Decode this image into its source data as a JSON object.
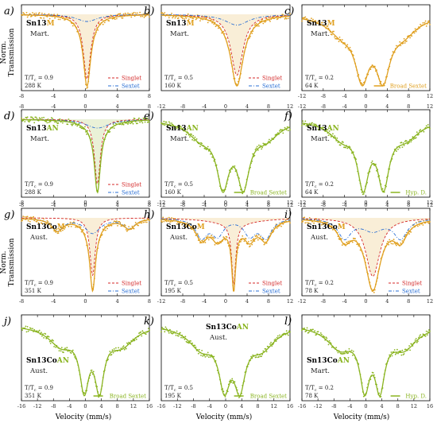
{
  "colors": {
    "M": "#e0a020",
    "AN": "#8ab420",
    "singlet": "#d42a2a",
    "sextet": "#2a6fd4",
    "sum": "#111111"
  },
  "axis_labels": {
    "y_line1": "Norm.",
    "y_line2": "Transmission",
    "x": "Velocity (mm/s)"
  },
  "chart_data": [
    {
      "panel": "a)",
      "type": "scatter",
      "sample_prefix": "Sn13",
      "sample_suffix": "M",
      "phase": "Mart.",
      "ratio": "T/T",
      "ratio_sub": "c",
      "ratio_val": "= 0.9",
      "temperature": "288 K",
      "xlim": [
        -8,
        8
      ],
      "xticks": [
        "-8",
        "-4",
        "0",
        "4",
        "8"
      ],
      "top_ticks": true,
      "bottom_ticks": true,
      "legend": [
        "Singlet",
        "Sextet"
      ],
      "color": "M",
      "model": {
        "singlet": [
          {
            "c": 0.2,
            "w": 0.55,
            "d": 0.9
          }
        ],
        "sextet": [
          {
            "c": 0.2,
            "w": 1.6,
            "d": 0.1
          }
        ]
      }
    },
    {
      "panel": "b)",
      "type": "scatter",
      "sample_prefix": "Sn13",
      "sample_suffix": "M",
      "phase": "Mart.",
      "ratio": "T/T",
      "ratio_sub": "c",
      "ratio_val": "= 0.5",
      "temperature": "160 K",
      "xlim": [
        -8,
        8
      ],
      "xticks": [],
      "top_ticks": true,
      "bottom_ticks": false,
      "legend": [
        "Singlet",
        "Sextet"
      ],
      "color": "M",
      "model": {
        "singlet": [
          {
            "c": 1.4,
            "w": 0.9,
            "d": 0.85
          }
        ],
        "sextet": [
          {
            "c": 1.4,
            "w": 1.8,
            "d": 0.15
          }
        ]
      }
    },
    {
      "panel": "c)",
      "type": "scatter",
      "sample_prefix": "Sn13",
      "sample_suffix": "M",
      "phase": "Mart.",
      "ratio": "T/T",
      "ratio_sub": "c",
      "ratio_val": "= 0.2",
      "temperature": "64 K",
      "xlim": [
        -12,
        12
      ],
      "xticks": [
        "-12",
        "-8",
        "-4",
        "0",
        "4",
        "8",
        "12"
      ],
      "top_ticks": false,
      "bottom_ticks": true,
      "legend": [
        "Broad Sextet"
      ],
      "color": "M",
      "model": {
        "sextet": [
          {
            "c": -0.7,
            "w": 1.6,
            "d": 0.62
          },
          {
            "c": 3.2,
            "w": 1.6,
            "d": 0.62
          },
          {
            "c": -4.5,
            "w": 3.2,
            "d": 0.18
          },
          {
            "c": 7,
            "w": 3.2,
            "d": 0.18
          }
        ]
      }
    },
    {
      "panel": "d)",
      "type": "scatter",
      "sample_prefix": "Sn13",
      "sample_suffix": "AN",
      "phase": "Mart.",
      "ratio": "T/T",
      "ratio_sub": "c",
      "ratio_val": "= 0.9",
      "temperature": "288 K",
      "xlim": [
        -8,
        8
      ],
      "xticks": [
        "-8",
        "-4",
        "0",
        "4",
        "8"
      ],
      "top_ticks": true,
      "bottom_ticks": true,
      "legend": [
        "Singlet",
        "Sextet"
      ],
      "color": "AN",
      "model": {
        "singlet": [
          {
            "c": 1.5,
            "w": 0.45,
            "d": 0.88
          }
        ],
        "sextet": [
          {
            "c": 1.5,
            "w": 1.8,
            "d": 0.12
          }
        ]
      }
    },
    {
      "panel": "e)",
      "type": "scatter",
      "sample_prefix": "Sn13",
      "sample_suffix": "AN",
      "phase": "Mart.",
      "ratio": "T/T",
      "ratio_sub": "c",
      "ratio_val": "= 0.5",
      "temperature": "160 K",
      "xlim": [
        -12,
        12
      ],
      "xticks": [
        "-12",
        "-8",
        "-4",
        "0",
        "4",
        "8",
        "12"
      ],
      "top_ticks": true,
      "bottom_ticks": true,
      "legend": [
        "Broad Sextet"
      ],
      "color": "AN",
      "model": {
        "sextet": [
          {
            "c": -0.5,
            "w": 1.4,
            "d": 0.7
          },
          {
            "c": 3.3,
            "w": 1.4,
            "d": 0.7
          },
          {
            "c": -4.5,
            "w": 3,
            "d": 0.2
          },
          {
            "c": 7.5,
            "w": 3,
            "d": 0.2
          }
        ]
      }
    },
    {
      "panel": "f)",
      "type": "scatter",
      "sample_prefix": "Sn13",
      "sample_suffix": "AN",
      "phase": "Mart.",
      "ratio": "T/T",
      "ratio_sub": "c",
      "ratio_val": "= 0.2",
      "temperature": "64 K",
      "xlim": [
        -12,
        12
      ],
      "xticks": [
        "-12",
        "-8",
        "-4",
        "0",
        "4",
        "8",
        "12"
      ],
      "top_ticks": true,
      "bottom_ticks": true,
      "legend": [
        "Hyp. D."
      ],
      "color": "AN",
      "model": {
        "sextet": [
          {
            "c": -0.5,
            "w": 1.3,
            "d": 0.72
          },
          {
            "c": 3.3,
            "w": 1.3,
            "d": 0.72
          },
          {
            "c": -4.5,
            "w": 3,
            "d": 0.2
          },
          {
            "c": 7.5,
            "w": 3,
            "d": 0.2
          }
        ]
      }
    },
    {
      "panel": "g)",
      "type": "scatter",
      "sample_prefix": "Sn13Co",
      "sample_suffix": "M",
      "phase": "Aust.",
      "ratio": "T/T",
      "ratio_sub": "c",
      "ratio_val": "= 0.9",
      "temperature": "351 K",
      "xlim": [
        -8,
        8
      ],
      "xticks": [
        "-8",
        "-4",
        "0",
        "4",
        "8"
      ],
      "top_ticks": true,
      "bottom_ticks": true,
      "legend": [
        "Singlet",
        "Sextet"
      ],
      "color": "M",
      "model": {
        "singlet": [
          {
            "c": 0.9,
            "w": 0.4,
            "d": 0.85
          }
        ],
        "sextet": [
          {
            "c": -3.5,
            "w": 0.9,
            "d": 0.18
          },
          {
            "c": 0.9,
            "w": 1.2,
            "d": 0.22
          },
          {
            "c": 5.5,
            "w": 0.9,
            "d": 0.15
          }
        ]
      }
    },
    {
      "panel": "h)",
      "type": "scatter",
      "sample_prefix": "Sn13Co",
      "sample_suffix": "M",
      "phase": "Aust.",
      "ratio": "T/T",
      "ratio_sub": "c",
      "ratio_val": "= 0.5",
      "temperature": "195 K",
      "xlim": [
        -12,
        12
      ],
      "xticks": [
        "-12",
        "-8",
        "-4",
        "0",
        "4",
        "8",
        "12"
      ],
      "top_ticks": true,
      "bottom_ticks": true,
      "legend": [
        "Singlet",
        "Sextet"
      ],
      "color": "M",
      "model": {
        "singlet": [
          {
            "c": 1.5,
            "w": 0.45,
            "d": 0.82
          },
          {
            "c": 1.5,
            "w": 5,
            "d": 0.08
          }
        ],
        "sextet": [
          {
            "c": -4.5,
            "w": 1.3,
            "d": 0.25
          },
          {
            "c": -1.5,
            "w": 1.3,
            "d": 0.22
          },
          {
            "c": 4.5,
            "w": 1.3,
            "d": 0.22
          },
          {
            "c": 7.5,
            "w": 1.3,
            "d": 0.25
          }
        ]
      }
    },
    {
      "panel": "i)",
      "type": "scatter",
      "sample_prefix": "Sn13Co",
      "sample_suffix": "M",
      "phase": "Aust.",
      "ratio": "T/T",
      "ratio_sub": "c",
      "ratio_val": "= 0.2",
      "temperature": "78 K",
      "xlim": [
        -12,
        12
      ],
      "xticks": [
        "-12",
        "-8",
        "-4",
        "0",
        "4",
        "8",
        "12"
      ],
      "top_ticks": true,
      "bottom_ticks": true,
      "legend": [
        "Singlet",
        "Sextet"
      ],
      "color": "M",
      "model": {
        "singlet": [
          {
            "c": 1.3,
            "w": 1.6,
            "d": 0.75
          }
        ],
        "sextet": [
          {
            "c": -4,
            "w": 1.5,
            "d": 0.25
          },
          {
            "c": 1.3,
            "w": 2.5,
            "d": 0.15
          },
          {
            "c": 6.5,
            "w": 1.5,
            "d": 0.25
          }
        ]
      }
    },
    {
      "panel": "j)",
      "type": "scatter",
      "sample_prefix": "Sn13Co",
      "sample_suffix": "AN",
      "phase": "Aust.",
      "ratio": "T/T",
      "ratio_sub": "c",
      "ratio_val": "= 0.9",
      "temperature": "351 K",
      "xlim": [
        -16,
        16
      ],
      "xticks": [
        "-16",
        "-12",
        "-8",
        "-4",
        "0",
        "4",
        "8",
        "12",
        "16"
      ],
      "top_ticks": false,
      "bottom_ticks": true,
      "legend": [
        "Broad Sextet"
      ],
      "color": "AN",
      "model": {
        "sextet": [
          {
            "c": -0.3,
            "w": 1.4,
            "d": 0.72
          },
          {
            "c": 3.5,
            "w": 1.4,
            "d": 0.72
          },
          {
            "c": -6,
            "w": 4,
            "d": 0.25
          },
          {
            "c": 9,
            "w": 4,
            "d": 0.25
          }
        ]
      }
    },
    {
      "panel": "k)",
      "type": "scatter",
      "sample_prefix": "Sn13Co",
      "sample_suffix": "AN",
      "phase": "Aust.",
      "ratio": "T/T",
      "ratio_sub": "c",
      "ratio_val": "= 0.5",
      "temperature": "195 K",
      "xlim": [
        -16,
        16
      ],
      "xticks": [
        "-16",
        "-12",
        "-8",
        "-4",
        "0",
        "4",
        "8",
        "12",
        "16"
      ],
      "top_ticks": false,
      "bottom_ticks": true,
      "legend": [
        "Broad Sextet"
      ],
      "color": "AN",
      "label_top_center": true,
      "model": {
        "sextet": [
          {
            "c": -0.3,
            "w": 1.7,
            "d": 0.68
          },
          {
            "c": 3.5,
            "w": 1.7,
            "d": 0.68
          },
          {
            "c": -6,
            "w": 4,
            "d": 0.28
          },
          {
            "c": 9,
            "w": 4,
            "d": 0.28
          }
        ]
      }
    },
    {
      "panel": "l)",
      "type": "scatter",
      "sample_prefix": "Sn13Co",
      "sample_suffix": "AN",
      "phase": "Mart.",
      "ratio": "T/T",
      "ratio_sub": "c",
      "ratio_val": "= 0.2",
      "temperature": "78 K",
      "xlim": [
        -16,
        16
      ],
      "xticks": [
        "-16",
        "-12",
        "-8",
        "-4",
        "0",
        "4",
        "8",
        "12",
        "16"
      ],
      "top_ticks": false,
      "bottom_ticks": true,
      "legend": [
        "Hyp. D."
      ],
      "color": "AN",
      "model": {
        "sextet": [
          {
            "c": -0.3,
            "w": 1.5,
            "d": 0.7
          },
          {
            "c": 3.5,
            "w": 1.5,
            "d": 0.7
          },
          {
            "c": -6.5,
            "w": 4,
            "d": 0.28
          },
          {
            "c": 9.5,
            "w": 4,
            "d": 0.28
          }
        ]
      }
    }
  ]
}
